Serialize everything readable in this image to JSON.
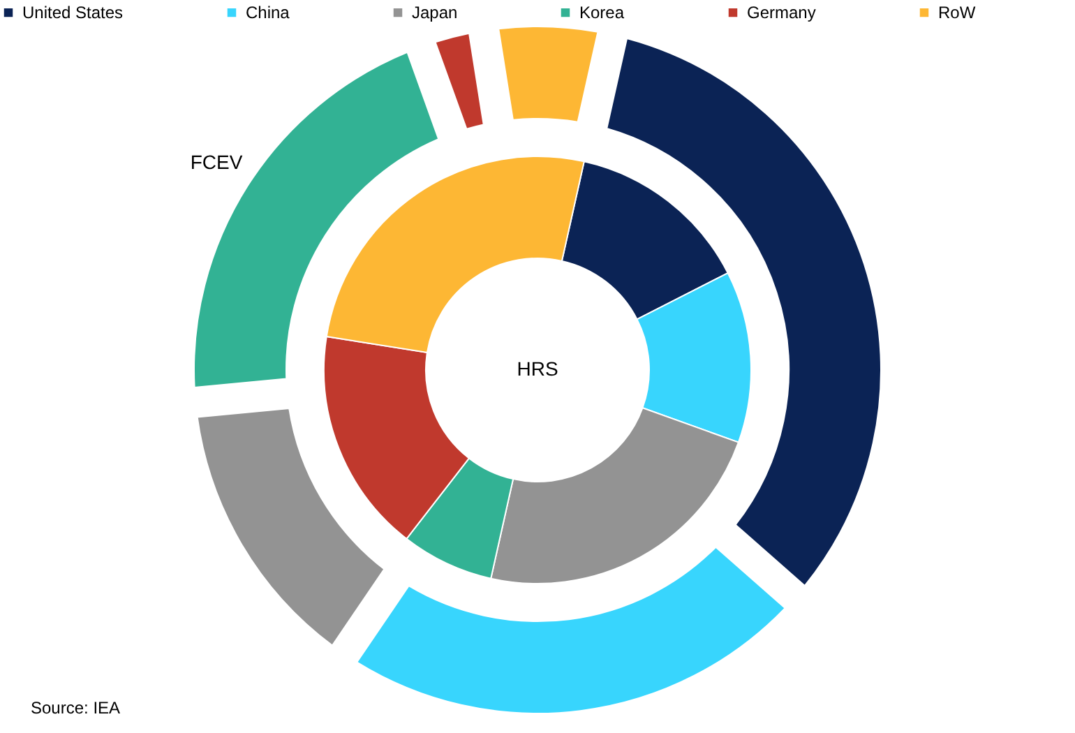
{
  "chart_data": {
    "type": "donut",
    "categories": [
      "United States",
      "China",
      "Japan",
      "Korea",
      "Germany",
      "RoW"
    ],
    "colors": [
      "#0b2355",
      "#38d5fd",
      "#939393",
      "#32b294",
      "#c0392d",
      "#fdb734"
    ],
    "series": [
      {
        "name": "FCEV",
        "values": [
          33,
          23,
          14,
          21,
          3,
          6
        ]
      },
      {
        "name": "HRS",
        "values": [
          14,
          13,
          23,
          7,
          17,
          26
        ]
      }
    ],
    "legend": "top",
    "annotations": [
      "Source: IEA"
    ]
  }
}
